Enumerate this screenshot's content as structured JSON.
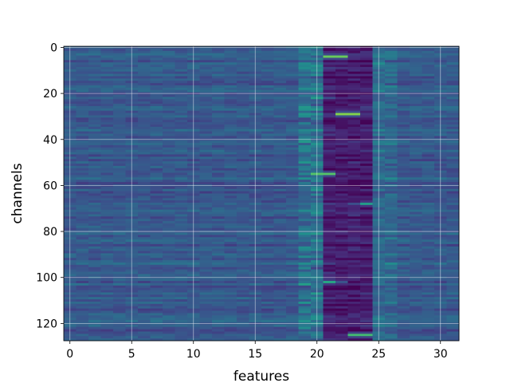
{
  "chart_data": {
    "type": "heatmap",
    "title": "",
    "xlabel": "features",
    "ylabel": "channels",
    "xlim": [
      -0.5,
      31.5
    ],
    "ylim": [
      127.5,
      -0.5
    ],
    "x_ticks": [
      0,
      5,
      10,
      15,
      20,
      25,
      30
    ],
    "y_ticks": [
      0,
      20,
      40,
      60,
      80,
      100,
      120
    ],
    "n_features": 32,
    "n_channels": 128,
    "colormap": "viridis",
    "grid": true,
    "highlights": [
      {
        "feature": 21.5,
        "channel": 4,
        "value": 0.95
      },
      {
        "feature": 22.5,
        "channel": 29,
        "value": 1.0
      },
      {
        "feature": 20.5,
        "channel": 55,
        "value": 0.9
      },
      {
        "feature": 23.5,
        "channel": 125,
        "value": 0.85
      },
      {
        "feature": 21,
        "channel": 102,
        "value": 0.6
      },
      {
        "feature": 20,
        "channel": 22,
        "value": 0.55
      },
      {
        "feature": 24,
        "channel": 68,
        "value": 0.55
      }
    ]
  },
  "colors": {
    "background": "#ffffff",
    "grid": "#ffffff",
    "low": "#440154",
    "high": "#fde725"
  }
}
